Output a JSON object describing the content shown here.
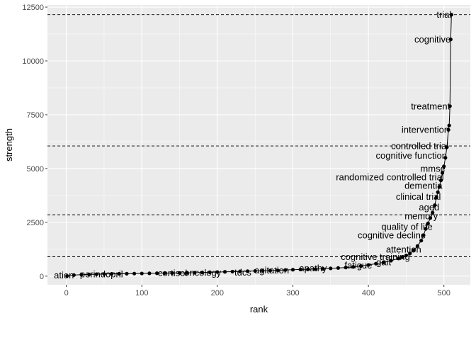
{
  "chart_data": {
    "type": "line",
    "title": "",
    "xlabel": "rank",
    "ylabel": "strength",
    "xlim": [
      -25,
      535
    ],
    "ylim": [
      -400,
      12600
    ],
    "x_ticks": [
      0,
      100,
      200,
      300,
      400,
      500
    ],
    "y_ticks": [
      0,
      2500,
      5000,
      7500,
      10000,
      12500
    ],
    "grid": true,
    "legend": "none",
    "colors": {
      "panel": "#ebebeb",
      "grid": "#ffffff",
      "line": "#000000",
      "point": "#000000",
      "hline": "#000000",
      "tick_text": "#4d4d4d"
    },
    "hlines": [
      900,
      2850,
      6050,
      12150
    ],
    "series": [
      {
        "x": [
          1,
          10,
          20,
          30,
          40,
          50,
          60,
          70,
          80,
          90,
          100,
          110,
          120,
          130,
          140,
          150,
          160,
          170,
          180,
          190,
          200,
          210,
          220,
          230,
          240,
          250,
          260,
          270,
          280,
          290,
          300,
          310,
          320,
          330,
          340,
          350,
          360,
          370,
          380,
          390,
          400,
          410,
          420,
          430,
          440,
          445,
          450,
          455,
          460,
          465,
          470,
          473,
          476,
          479,
          482,
          485,
          488,
          490,
          492,
          494,
          496,
          498,
          500,
          502,
          504,
          506,
          507,
          508,
          509,
          510
        ],
        "y": [
          10,
          50,
          70,
          80,
          90,
          100,
          105,
          110,
          115,
          120,
          125,
          130,
          135,
          140,
          145,
          150,
          155,
          160,
          170,
          180,
          190,
          200,
          210,
          220,
          230,
          240,
          250,
          260,
          270,
          285,
          300,
          310,
          320,
          330,
          340,
          360,
          380,
          400,
          430,
          470,
          520,
          580,
          640,
          720,
          820,
          880,
          960,
          1050,
          1200,
          1400,
          1650,
          1900,
          2200,
          2450,
          2700,
          2950,
          3300,
          3650,
          3900,
          4150,
          4450,
          4800,
          5100,
          5500,
          6000,
          6800,
          7000,
          7900,
          11000,
          12150
        ]
      }
    ],
    "annotations": [
      {
        "text": "trial",
        "x": 510,
        "y": 12150
      },
      {
        "text": "cognitive",
        "x": 509,
        "y": 11000
      },
      {
        "text": "treatment",
        "x": 508,
        "y": 7900
      },
      {
        "text": "intervention",
        "x": 507,
        "y": 6800
      },
      {
        "text": "controlled trial",
        "x": 506,
        "y": 6050
      },
      {
        "text": "cognitive function",
        "x": 504,
        "y": 5600
      },
      {
        "text": "mmse",
        "x": 502,
        "y": 5000
      },
      {
        "text": "randomized controlled trial",
        "x": 500,
        "y": 4600
      },
      {
        "text": "dementia",
        "x": 498,
        "y": 4200
      },
      {
        "text": "clinical trial",
        "x": 496,
        "y": 3700
      },
      {
        "text": "aged",
        "x": 494,
        "y": 3200
      },
      {
        "text": "memory",
        "x": 492,
        "y": 2800
      },
      {
        "text": "quality of life",
        "x": 485,
        "y": 2300
      },
      {
        "text": "cognitive decline",
        "x": 476,
        "y": 1900
      },
      {
        "text": "attention",
        "x": 470,
        "y": 1250
      },
      {
        "text": "cognitive training",
        "x": 455,
        "y": 900
      },
      {
        "text": "gait",
        "x": 430,
        "y": 650
      },
      {
        "text": "fatigue",
        "x": 405,
        "y": 500
      },
      {
        "text": "apathy",
        "x": 345,
        "y": 380
      },
      {
        "text": "agitation",
        "x": 295,
        "y": 280
      },
      {
        "text": "tdcs",
        "x": 245,
        "y": 180
      },
      {
        "text": "oncology",
        "x": 205,
        "y": 160
      },
      {
        "text": "cortisol",
        "x": 160,
        "y": 150
      },
      {
        "text": "perindopril",
        "x": 75,
        "y": 100
      },
      {
        "text": "ation",
        "x": 10,
        "y": 50
      }
    ]
  }
}
